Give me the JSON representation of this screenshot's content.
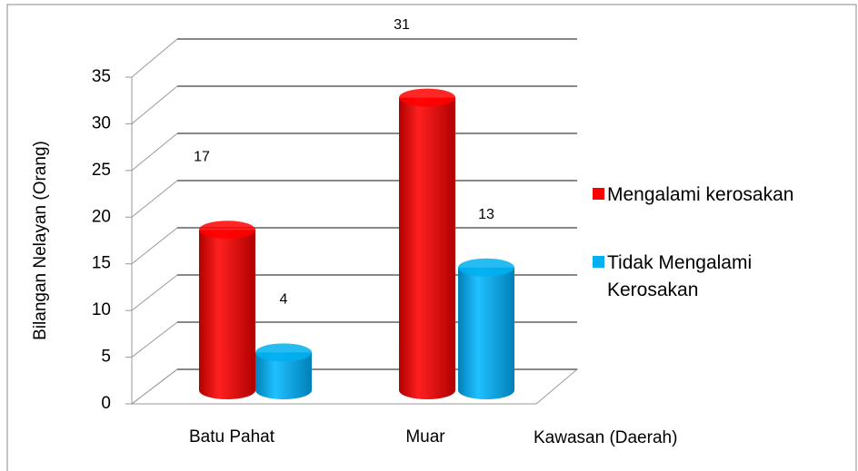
{
  "chart_data": {
    "type": "bar",
    "categories": [
      "Batu Pahat",
      "Muar"
    ],
    "series": [
      {
        "name": "Mengalami kerosakan",
        "color": "#ff0000",
        "values": [
          17,
          31
        ]
      },
      {
        "name": "Tidak Mengalami Kerosakan",
        "color": "#00b0f0",
        "values": [
          4,
          13
        ]
      }
    ],
    "ylim": [
      0,
      35
    ],
    "yticks": [
      0,
      5,
      10,
      15,
      20,
      25,
      30,
      35
    ],
    "grid": true,
    "ylabel": "Bilangan Nelayan (Orang)",
    "xlabel": "Kawasan (Daerah)",
    "legend": "right"
  }
}
